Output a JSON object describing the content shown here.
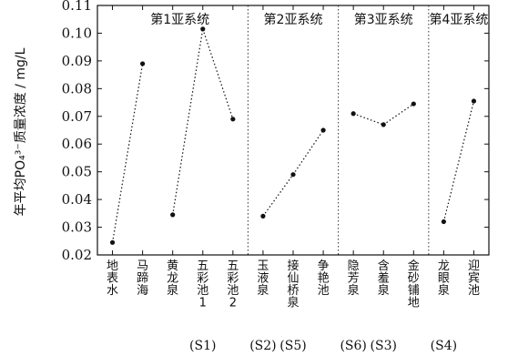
{
  "chart_data": {
    "type": "line",
    "ylabel": "年平均PO₄³⁻质量浓度 / mg/L",
    "ylim": [
      0.02,
      0.11
    ],
    "yticks": [
      "0.02",
      "0.03",
      "0.04",
      "0.05",
      "0.06",
      "0.07",
      "0.08",
      "0.09",
      "0.10",
      "0.11"
    ],
    "categories": [
      "地表水",
      "马蹄海",
      "黄龙泉",
      "五彩池1",
      "五彩池2",
      "玉液泉",
      "接仙桥泉",
      "争艳池",
      "隐芳泉",
      "含羞泉",
      "金砂铺地",
      "龙眼泉",
      "迎宾池"
    ],
    "values": [
      0.0245,
      0.089,
      0.0345,
      0.1015,
      0.069,
      0.034,
      0.049,
      0.065,
      0.071,
      0.067,
      0.0745,
      0.032,
      0.0755
    ],
    "segments": [
      {
        "name": "第1亚系统",
        "indices": [
          0,
          1,
          2,
          3,
          4
        ]
      },
      {
        "name": "第2亚系统",
        "indices": [
          5,
          6,
          7
        ]
      },
      {
        "name": "第3亚系统",
        "indices": [
          8,
          9,
          10
        ]
      },
      {
        "name": "第4亚系统",
        "indices": [
          11,
          12
        ]
      }
    ],
    "connections": [
      [
        0,
        1
      ],
      [
        2,
        3
      ],
      [
        3,
        4
      ],
      [
        5,
        6
      ],
      [
        6,
        7
      ],
      [
        8,
        9
      ],
      [
        9,
        10
      ],
      [
        11,
        12
      ]
    ],
    "subsystem_codes": [
      {
        "label": "(S1)",
        "center": 3
      },
      {
        "label": "(S2)",
        "center": 5
      },
      {
        "label": "(S5)",
        "center": 6
      },
      {
        "label": "(S6)",
        "center": 8
      },
      {
        "label": "(S3)",
        "center": 9
      },
      {
        "label": "(S4)",
        "center": 11
      }
    ]
  }
}
